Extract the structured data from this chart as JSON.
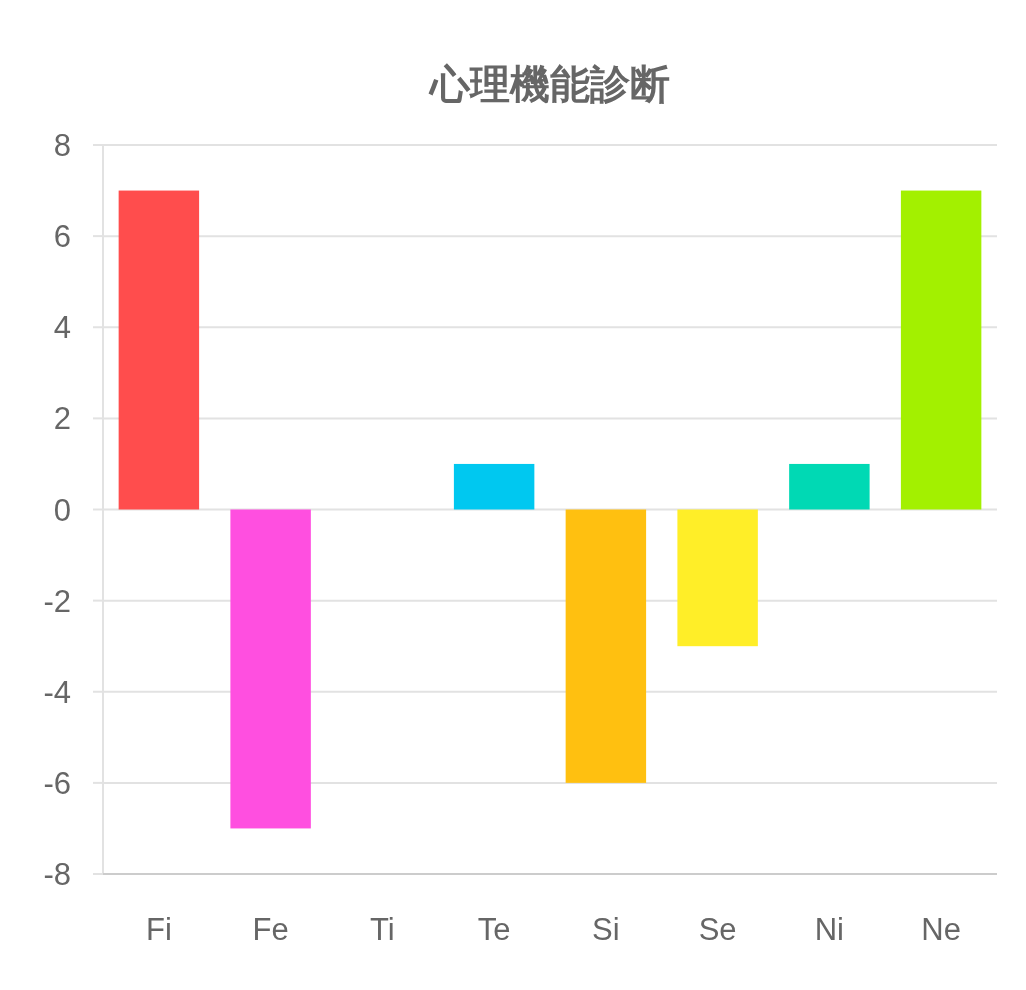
{
  "chart_data": {
    "type": "bar",
    "title": "心理機能診断",
    "categories": [
      "Fi",
      "Fe",
      "Ti",
      "Te",
      "Si",
      "Se",
      "Ni",
      "Ne"
    ],
    "values": [
      7,
      -7,
      0,
      1,
      -6,
      -3,
      1,
      7
    ],
    "colors": [
      "#ff4d4d",
      "#ff4fe0",
      "#8c6cf0",
      "#00c8f0",
      "#ffc010",
      "#ffee28",
      "#00d9b4",
      "#a3f000"
    ],
    "ylim": [
      -8,
      8
    ],
    "yticks": [
      -8,
      -6,
      -4,
      -2,
      0,
      2,
      4,
      6,
      8
    ],
    "grid": true
  }
}
